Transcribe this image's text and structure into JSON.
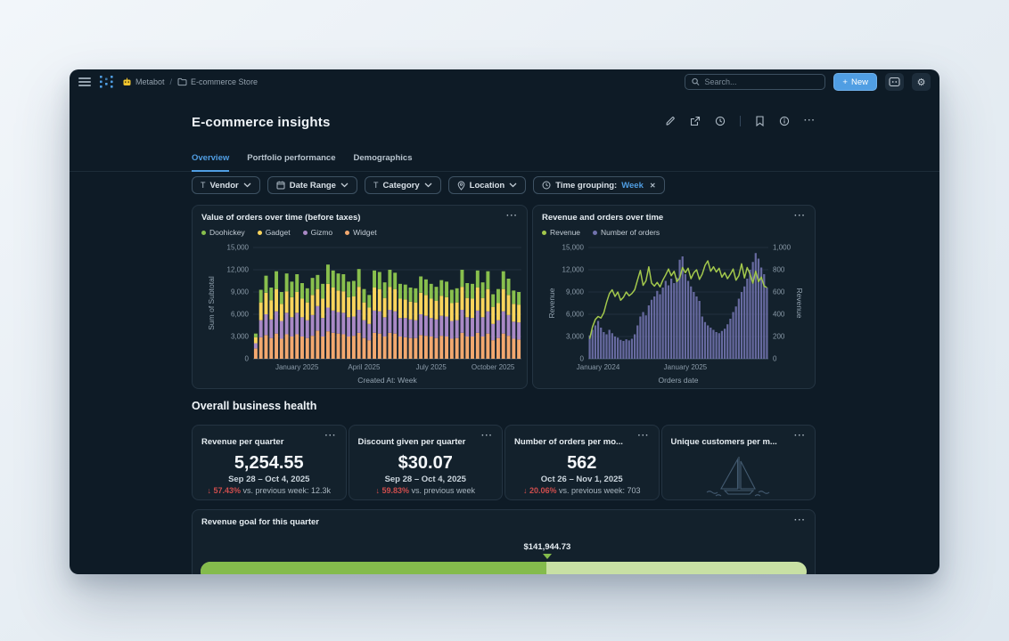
{
  "nav": {
    "breadcrumb": {
      "bot": "Metabot",
      "separator": "/",
      "collection": "E-commerce Store"
    },
    "search_placeholder": "Search...",
    "new_button_label": "New"
  },
  "icons": {
    "plus": "+",
    "ellipsis": "···",
    "text_filter": "T",
    "close": "✕",
    "down_arrow": "↓",
    "gear": "⚙"
  },
  "header": {
    "title": "E-commerce insights",
    "tabs": [
      {
        "label": "Overview",
        "active": true
      },
      {
        "label": "Portfolio performance",
        "active": false
      },
      {
        "label": "Demographics",
        "active": false
      }
    ]
  },
  "filters": {
    "items": [
      {
        "icon": "text",
        "label": "Vendor"
      },
      {
        "icon": "calendar",
        "label": "Date Range"
      },
      {
        "icon": "text",
        "label": "Category"
      },
      {
        "icon": "location",
        "label": "Location"
      },
      {
        "icon": "clock",
        "label": "Time grouping:",
        "value": "Week",
        "removable": true
      }
    ]
  },
  "section_heading": "Overall business health",
  "kpis": [
    {
      "title": "Revenue per quarter",
      "value": "5,254.55",
      "date": "Sep 28 – Oct 4, 2025",
      "direction": "down",
      "change": "57.43%",
      "change_suffix": "vs. previous week: 12.3k"
    },
    {
      "title": "Discount given per quarter",
      "value": "$30.07",
      "date": "Sep 28 – Oct 4, 2025",
      "direction": "down",
      "change": "59.83%",
      "change_suffix": "vs. previous week"
    },
    {
      "title": "Number of orders per mo...",
      "value": "562",
      "date": "Oct 26 – Nov 1, 2025",
      "direction": "down",
      "change": "20.06%",
      "change_suffix": "vs. previous week: 703"
    },
    {
      "title": "Unique customers per m...",
      "empty_state": "sailboat-illustration"
    }
  ],
  "goal_card": {
    "title": "Revenue goal for this quarter",
    "marker_value": "$141,944.73",
    "progress_pct": 57,
    "fill_color": "#84BB4C",
    "track_color": "#C8E0A4"
  },
  "colors": {
    "brand_blue": "#509EE3",
    "negative_red": "#CE4D4D",
    "window_bg": "#0E1B26",
    "card_bg": "#13212C",
    "grid": "#20303E",
    "tick_text": "#8A9AA8"
  },
  "chart_data": [
    {
      "type": "bar",
      "stacked": true,
      "title": "Value of orders over time (before taxes)",
      "xlabel": "Created At: Week",
      "ylabel": "Sum of Subtotal",
      "ylim": [
        0,
        15000
      ],
      "yticks": [
        0,
        3000,
        6000,
        9000,
        12000,
        15000
      ],
      "xticks": [
        {
          "index": 8,
          "label": "January 2025"
        },
        {
          "index": 21,
          "label": "April 2025"
        },
        {
          "index": 34,
          "label": "July 2025"
        },
        {
          "index": 46,
          "label": "October 2025"
        }
      ],
      "stack_order": [
        "Widget",
        "Gizmo",
        "Gadget",
        "Doohickey"
      ],
      "series": [
        {
          "name": "Doohickey",
          "color": "#88BF4D",
          "values": [
            500,
            1700,
            2300,
            1700,
            2400,
            1600,
            2400,
            2100,
            2400,
            2100,
            1900,
            2300,
            1900,
            2000,
            2600,
            2300,
            2300,
            2300,
            2100,
            2100,
            2400,
            1800,
            1700,
            2300,
            2300,
            2100,
            2300,
            2200,
            2000,
            2000,
            1900,
            1900,
            2200,
            2100,
            2000,
            1900,
            2100,
            2100,
            1800,
            1900,
            2300,
            2000,
            2000,
            2300,
            2100,
            2400,
            1700,
            1900,
            2400,
            2200,
            1800,
            1700
          ]
        },
        {
          "name": "Gadget",
          "color": "#F9D45C",
          "values": [
            800,
            2400,
            2900,
            2600,
            3000,
            2300,
            2900,
            2700,
            2800,
            2500,
            2400,
            2700,
            2300,
            2600,
            3200,
            3100,
            2900,
            2900,
            2700,
            2700,
            3100,
            2400,
            2200,
            3100,
            3000,
            2600,
            3100,
            3000,
            2600,
            2500,
            2400,
            2400,
            2900,
            2800,
            2600,
            2500,
            2700,
            2600,
            2400,
            2400,
            3100,
            2600,
            2600,
            3100,
            2600,
            3000,
            2300,
            2300,
            3000,
            2700,
            2400,
            2400
          ]
        },
        {
          "name": "Gizmo",
          "color": "#A989C5",
          "values": [
            700,
            2300,
            2800,
            2500,
            3000,
            2400,
            2900,
            2600,
            2900,
            2600,
            2400,
            2800,
            3300,
            2500,
            3200,
            3000,
            2900,
            2900,
            2600,
            2600,
            3100,
            2400,
            2200,
            3000,
            3000,
            2600,
            3100,
            3000,
            2500,
            2600,
            2500,
            2400,
            2800,
            2700,
            2500,
            2500,
            2700,
            2700,
            2400,
            2400,
            3100,
            2600,
            2500,
            3000,
            2600,
            3000,
            2200,
            2400,
            3000,
            2800,
            2300,
            2300
          ]
        },
        {
          "name": "Widget",
          "color": "#F2A86F",
          "values": [
            1400,
            2900,
            3200,
            2800,
            3400,
            2700,
            3300,
            3000,
            3300,
            3000,
            2800,
            3100,
            3800,
            3000,
            3700,
            3500,
            3400,
            3300,
            3000,
            3100,
            3500,
            2800,
            2500,
            3500,
            3400,
            3000,
            3500,
            3400,
            3000,
            2900,
            2800,
            2800,
            3200,
            3100,
            3000,
            2800,
            3100,
            3000,
            2700,
            2800,
            3500,
            3000,
            3000,
            3500,
            3000,
            3400,
            2500,
            2800,
            3400,
            3100,
            2700,
            2600
          ]
        }
      ]
    },
    {
      "type": "combo",
      "title": "Revenue and orders over time",
      "xlabel": "Orders date",
      "ylabel_left": "Revenue",
      "ylabel_right": "Revenue",
      "ylim_left": [
        0,
        15000
      ],
      "yticks_left": [
        0,
        3000,
        6000,
        9000,
        12000,
        15000
      ],
      "ylim_right": [
        0,
        1000
      ],
      "yticks_right": [
        0,
        200,
        400,
        600,
        800,
        1000
      ],
      "xticks": [
        {
          "index": 3,
          "label": "January 2024"
        },
        {
          "index": 34,
          "label": "January 2025"
        }
      ],
      "series": [
        {
          "name": "Revenue",
          "type": "line",
          "axis": "left",
          "color": "#A3C84C",
          "values": [
            2700,
            4300,
            5300,
            5700,
            5500,
            6200,
            7600,
            8800,
            9300,
            8400,
            9000,
            7900,
            8300,
            9000,
            8500,
            8800,
            9300,
            10600,
            11900,
            9900,
            10500,
            12400,
            10200,
            9800,
            10300,
            9700,
            10600,
            11300,
            12100,
            11200,
            11800,
            10400,
            10900,
            12300,
            11600,
            12200,
            10800,
            11600,
            12000,
            10700,
            11400,
            12600,
            13200,
            11800,
            12400,
            11700,
            12200,
            11000,
            11600,
            10800,
            11400,
            12100,
            10600,
            11200,
            12800,
            10900,
            12300,
            11400,
            10200,
            11800,
            10400,
            11000,
            9800,
            9600
          ]
        },
        {
          "name": "Number of orders",
          "type": "bar",
          "axis": "right",
          "color": "#7172AD",
          "values": [
            210,
            260,
            300,
            340,
            280,
            240,
            220,
            260,
            230,
            200,
            190,
            170,
            160,
            175,
            165,
            180,
            220,
            300,
            380,
            420,
            390,
            480,
            530,
            560,
            610,
            580,
            640,
            700,
            660,
            720,
            680,
            730,
            890,
            920,
            760,
            700,
            650,
            600,
            560,
            520,
            380,
            330,
            300,
            280,
            260,
            240,
            230,
            250,
            270,
            310,
            360,
            420,
            470,
            540,
            600,
            650,
            720,
            800,
            870,
            950,
            900,
            820,
            760,
            640
          ]
        }
      ]
    }
  ]
}
